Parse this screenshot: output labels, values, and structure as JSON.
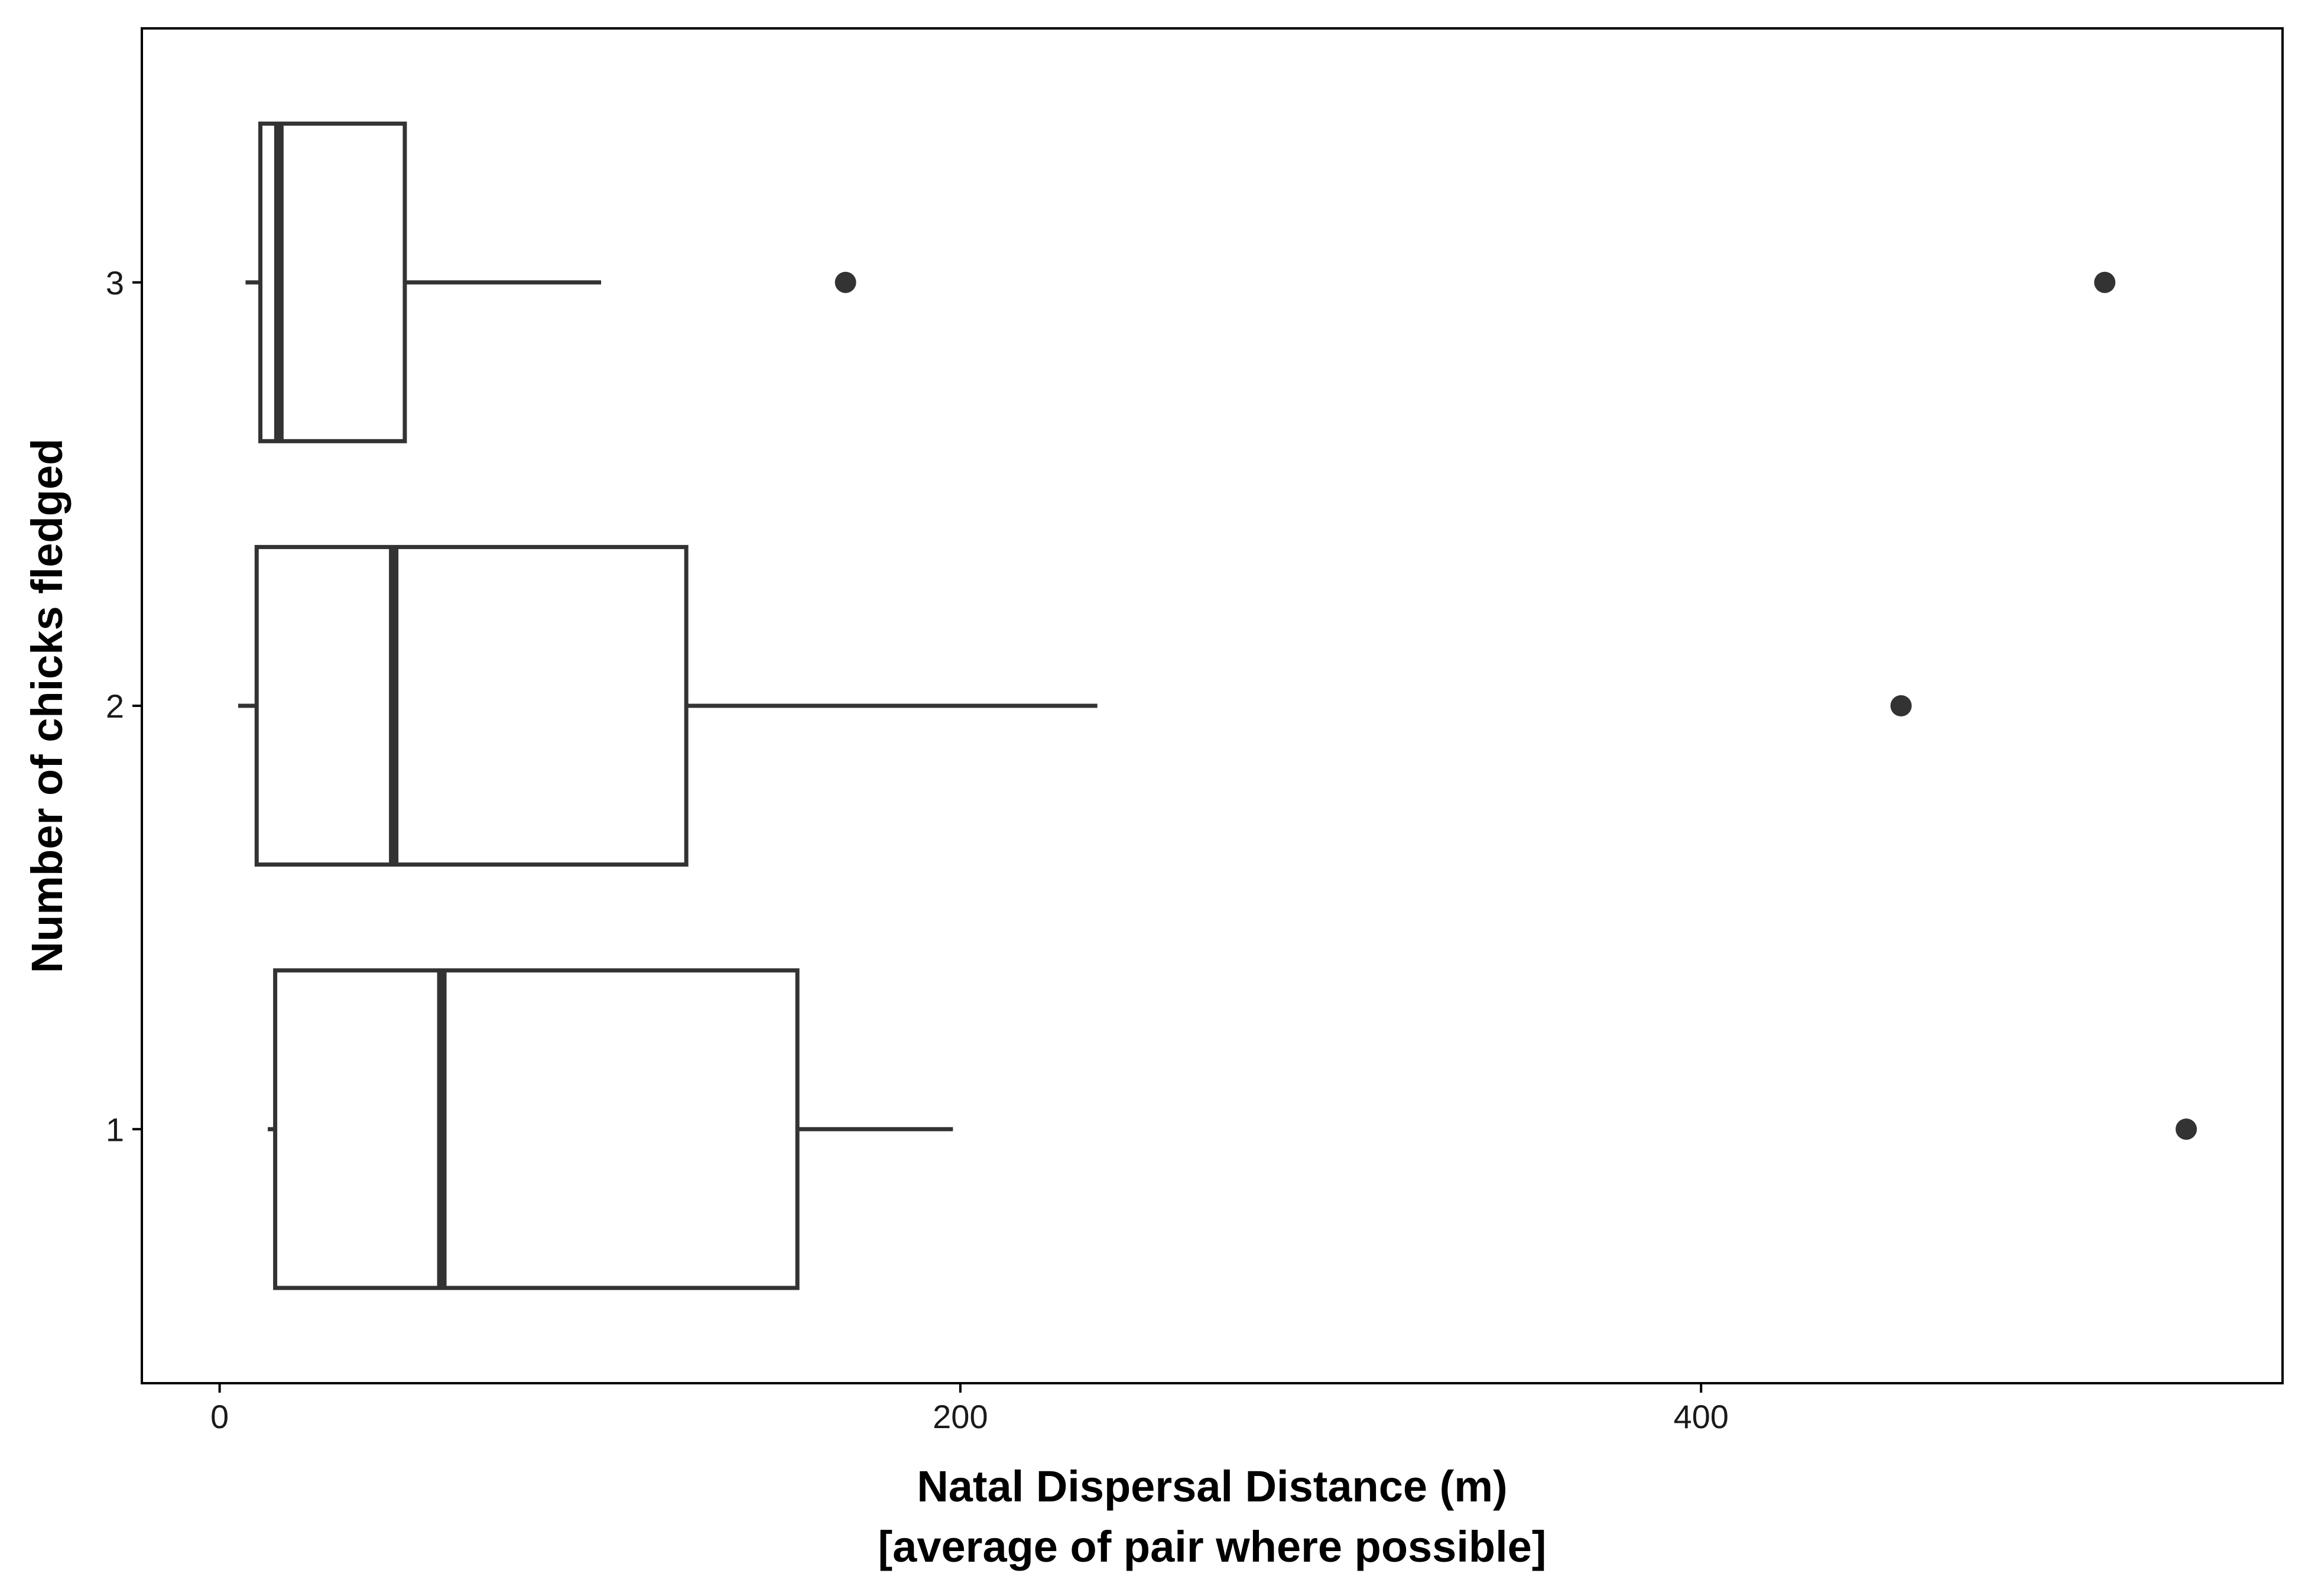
{
  "chart_data": {
    "type": "boxplot",
    "orientation": "horizontal",
    "xlabel": "Natal Dispersal Distance (m)",
    "xlabel_line2": "[average of pair where possible]",
    "ylabel": "Number of chicks fledged",
    "xlim": [
      -21,
      557
    ],
    "xticks": [
      0,
      200,
      400
    ],
    "categories": [
      "1",
      "2",
      "3"
    ],
    "grid": false,
    "boxes": [
      {
        "category": "1",
        "whisker_low": 13,
        "q1": 15,
        "median": 60,
        "q3": 156,
        "whisker_high": 198,
        "outliers": [
          531
        ]
      },
      {
        "category": "2",
        "whisker_low": 5,
        "q1": 10,
        "median": 47,
        "q3": 126,
        "whisker_high": 237,
        "outliers": [
          454
        ]
      },
      {
        "category": "3",
        "whisker_low": 7,
        "q1": 11,
        "median": 16,
        "q3": 50,
        "whisker_high": 103,
        "outliers": [
          169,
          509
        ]
      }
    ],
    "colors": {
      "box_stroke": "#333333",
      "box_fill": "#ffffff",
      "outlier": "#333333",
      "frame": "#000000"
    }
  }
}
